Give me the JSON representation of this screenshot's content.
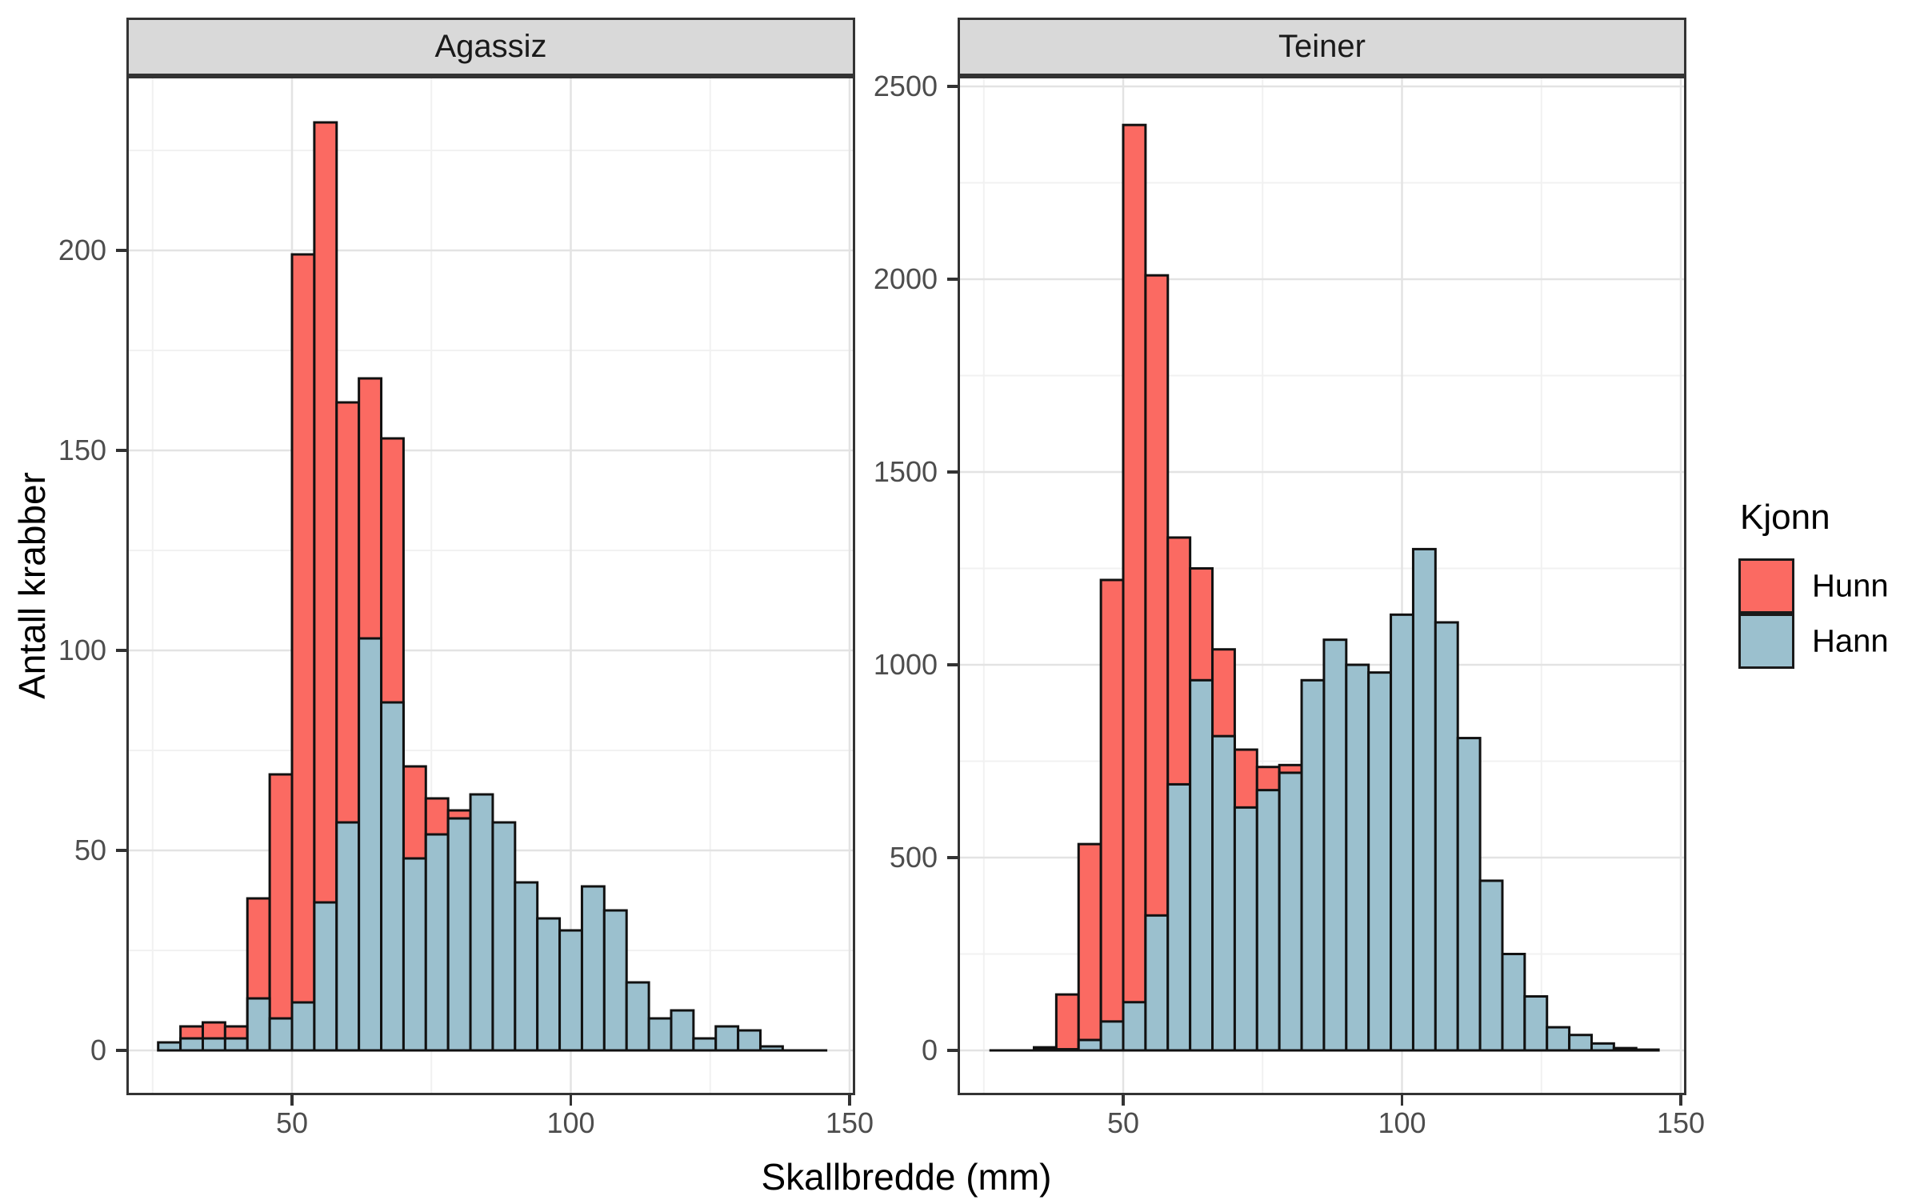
{
  "figure": {
    "background": "#FFFFFF",
    "strip_fill": "#D9D9D9",
    "strip_border": "#333333",
    "panel_border": "#333333",
    "grid_major_color": "#E3E3E3",
    "grid_minor_color": "#F1F1F1",
    "tick_color": "#333333",
    "tick_label_color": "#4D4D4D",
    "bar_outline_color": "#111111"
  },
  "axes": {
    "x_title": "Skallbredde (mm)",
    "y_title": "Antall krabber"
  },
  "legend": {
    "title": "Kjonn",
    "entries": [
      {
        "label": "Hunn",
        "color": "#FB6A62"
      },
      {
        "label": "Hann",
        "color": "#9BC0CE"
      }
    ]
  },
  "chart_data": [
    {
      "type": "histogram",
      "facet": "Agassiz",
      "xlabel": "Skallbredde (mm)",
      "ylabel": "Antall krabber",
      "bin_start_mm": 26,
      "bin_width_mm": 4,
      "xlim": [
        20.3,
        151.0
      ],
      "ylim": [
        0,
        243
      ],
      "x_ticks": [
        50,
        100,
        150
      ],
      "x_minor_ticks": [
        25,
        75,
        125
      ],
      "y_ticks": [
        0,
        50,
        100,
        150,
        200
      ],
      "y_minor_ticks": [
        25,
        75,
        125,
        175,
        225
      ],
      "series": [
        {
          "name": "Hunn",
          "color": "#FB6A62",
          "counts": [
            0,
            6,
            7,
            6,
            38,
            69,
            199,
            232,
            162,
            168,
            153,
            71,
            63,
            60,
            0,
            0,
            0,
            0,
            0,
            0,
            0,
            0,
            0,
            0,
            0,
            0,
            0,
            0,
            0,
            0
          ]
        },
        {
          "name": "Hann",
          "color": "#9BC0CE",
          "counts": [
            2,
            3,
            3,
            3,
            13,
            8,
            12,
            37,
            57,
            103,
            87,
            48,
            54,
            58,
            64,
            57,
            42,
            33,
            30,
            41,
            35,
            17,
            8,
            10,
            3,
            6,
            5,
            1,
            0,
            0
          ]
        }
      ]
    },
    {
      "type": "histogram",
      "facet": "Teiner",
      "xlabel": "Skallbredde (mm)",
      "ylabel": "Antall krabber",
      "bin_start_mm": 26,
      "bin_width_mm": 4,
      "xlim": [
        20.3,
        151.0
      ],
      "ylim": [
        0,
        2520
      ],
      "x_ticks": [
        50,
        100,
        150
      ],
      "x_minor_ticks": [
        25,
        75,
        125
      ],
      "y_ticks": [
        0,
        500,
        1000,
        1500,
        2000,
        2500
      ],
      "y_minor_ticks": [
        250,
        750,
        1250,
        1750,
        2250
      ],
      "series": [
        {
          "name": "Hunn",
          "color": "#FB6A62",
          "counts": [
            0,
            0,
            8,
            145,
            535,
            1220,
            2400,
            2010,
            1330,
            1250,
            1040,
            780,
            735,
            740,
            0,
            0,
            0,
            0,
            0,
            0,
            0,
            0,
            0,
            0,
            0,
            0,
            0,
            0,
            0,
            0
          ]
        },
        {
          "name": "Hann",
          "color": "#9BC0CE",
          "counts": [
            0,
            0,
            3,
            3,
            27,
            75,
            125,
            350,
            690,
            960,
            815,
            630,
            675,
            720,
            960,
            1065,
            1000,
            980,
            1130,
            1300,
            1110,
            810,
            440,
            250,
            140,
            60,
            40,
            18,
            6,
            2
          ]
        }
      ]
    }
  ]
}
